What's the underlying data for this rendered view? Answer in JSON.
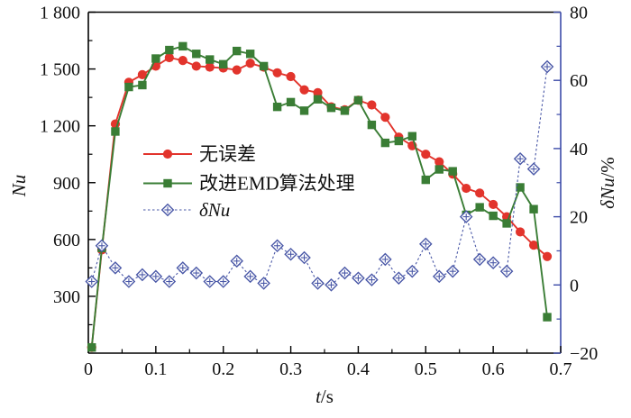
{
  "chart_data": {
    "type": "line",
    "title": "",
    "xlabel": "t/s",
    "ylabel_left": "Nu",
    "ylabel_right": "δNu/%",
    "xlim": [
      0,
      0.7
    ],
    "ylim_left": [
      0,
      1800
    ],
    "ylim_right": [
      -20,
      80
    ],
    "x_ticks": [
      0,
      0.1,
      0.2,
      0.3,
      0.4,
      0.5,
      0.6,
      0.7
    ],
    "x_tick_labels": [
      "0",
      "0.1",
      "0.2",
      "0.3",
      "0.4",
      "0.5",
      "0.6",
      "0.7"
    ],
    "x_minor_step": 0.05,
    "y_left_ticks": [
      300,
      600,
      900,
      1200,
      1500,
      1800
    ],
    "y_left_tick_labels": [
      "300",
      "600",
      "900",
      "1 200",
      "1 500",
      "1 800"
    ],
    "y_left_minor_step": 150,
    "y_right_ticks": [
      -20,
      0,
      20,
      40,
      60,
      80
    ],
    "y_right_tick_labels": [
      "−20",
      "0",
      "20",
      "40",
      "60",
      "80"
    ],
    "y_right_minor_step": 10,
    "grid": false,
    "legend_position": "inside-upper-left",
    "axis_colors": {
      "left": "#000000",
      "bottom": "#000000",
      "top": "#000000",
      "right": "#3c4ba8"
    },
    "background": "#ffffff",
    "x": [
      0.005,
      0.02,
      0.04,
      0.06,
      0.08,
      0.1,
      0.12,
      0.14,
      0.16,
      0.18,
      0.2,
      0.22,
      0.24,
      0.26,
      0.28,
      0.3,
      0.32,
      0.34,
      0.36,
      0.38,
      0.4,
      0.42,
      0.44,
      0.46,
      0.48,
      0.5,
      0.52,
      0.54,
      0.56,
      0.58,
      0.6,
      0.62,
      0.64,
      0.66,
      0.68
    ],
    "series": [
      {
        "name": "无误差",
        "axis": "left",
        "color": "#e2342c",
        "marker": "circle",
        "line": "solid",
        "values": [
          30,
          545,
          1210,
          1430,
          1470,
          1515,
          1560,
          1545,
          1515,
          1510,
          1505,
          1495,
          1530,
          1510,
          1480,
          1460,
          1390,
          1375,
          1300,
          1285,
          1335,
          1310,
          1245,
          1140,
          1095,
          1050,
          1010,
          945,
          870,
          845,
          785,
          720,
          640,
          570,
          510
        ]
      },
      {
        "name": "改进EMD算法处理",
        "axis": "left",
        "color": "#3a7d35",
        "marker": "square",
        "line": "solid",
        "values": [
          30,
          555,
          1170,
          1405,
          1415,
          1555,
          1600,
          1620,
          1580,
          1550,
          1525,
          1595,
          1580,
          1515,
          1300,
          1325,
          1280,
          1340,
          1295,
          1280,
          1335,
          1205,
          1110,
          1120,
          1145,
          915,
          970,
          960,
          730,
          770,
          725,
          685,
          875,
          760,
          190
        ]
      },
      {
        "name": "δNu",
        "axis": "right",
        "color": "#4a58a7",
        "marker": "diamond-plus",
        "line": "dashed",
        "values": [
          1,
          11.5,
          5,
          1,
          3,
          2.5,
          1,
          5,
          3.5,
          1,
          1,
          7,
          2.5,
          0.5,
          11.5,
          9,
          8,
          0.5,
          0,
          3.5,
          2,
          1.5,
          7.5,
          2,
          4,
          12,
          2.5,
          4,
          20,
          7.5,
          6.5,
          4,
          37,
          34,
          64
        ]
      }
    ]
  }
}
